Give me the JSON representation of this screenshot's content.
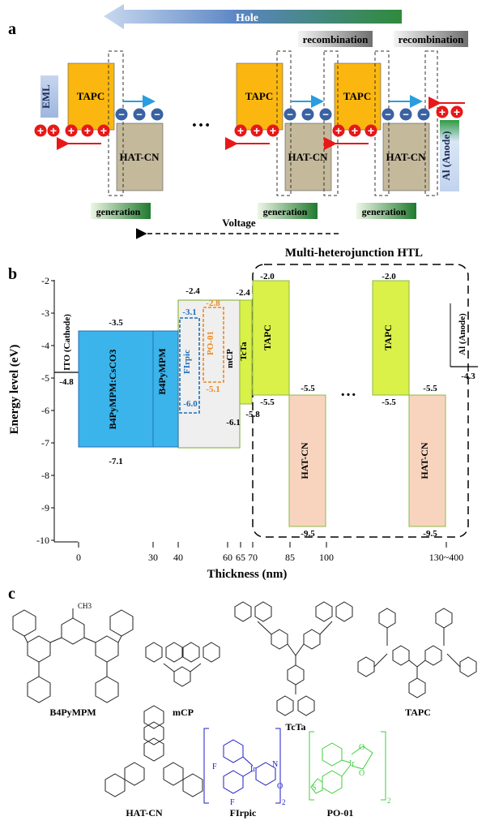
{
  "panel_a": {
    "label": "a",
    "hole_arrow": "Hole",
    "recombination": [
      "recombination",
      "recombination"
    ],
    "eml": "EML",
    "tapc": "TAPC",
    "hatcn": "HAT-CN",
    "anode": "Al (Anode)",
    "ellipsis": "…",
    "generation": [
      "generation",
      "generation",
      "generation"
    ],
    "voltage": "Voltage",
    "plus": "+",
    "minus": "−",
    "colors": {
      "tapc": "#fbb70f",
      "hatcn": "#c4b99b",
      "hole_red": "#e81818",
      "electron_blue": "#3a62a3",
      "arrow_blue": "#2a9de0",
      "gen_green": "#2f8a3b"
    }
  },
  "panel_b": {
    "label": "b",
    "title": "Multi-heterojunction HTL",
    "ylabel": "Energy level (eV)",
    "xlabel": "Thickness (nm)",
    "y_ticks": [
      "-2",
      "-3",
      "-4",
      "-5",
      "-6",
      "-7",
      "-8",
      "-9",
      "-10"
    ],
    "x_ticks": [
      "0",
      "30",
      "40",
      "60",
      "65",
      "70",
      "85",
      "100",
      "130~400"
    ],
    "ellipsis": "…",
    "materials": {
      "ito": "ITO (Cathode)",
      "b4pympm_cs": "B4PyMPM:CsCO3",
      "b4pympm": "B4PyMPM",
      "firpic": "FIrpic",
      "po01": "PO-01",
      "mcp": "mCP",
      "tcta": "TcTa",
      "tapc": "TAPC",
      "hatcn": "HAT-CN",
      "al": "Al (Anode)"
    },
    "level_labels": {
      "ito": "-4.8",
      "b4_lumo": "-3.5",
      "b4_homo": "-7.1",
      "mcp_lumo": "-2.4",
      "mcp_homo": "-6.1",
      "firpic_lumo": "-3.1",
      "firpic_homo": "-6.0",
      "po_lumo": "-2.8",
      "po_homo": "-5.1",
      "tcta_lumo": "-2.4",
      "tcta_homo": "-5.8",
      "tapc_lumo": "-2.0",
      "tapc_homo": "-5.5",
      "hat_lumo": "-5.5",
      "hat_homo": "-9.5",
      "al": "-4.3"
    },
    "chart_data": {
      "type": "energy-level diagram",
      "title": "Multi-heterojunction HTL",
      "xlabel": "Thickness (nm)",
      "ylabel": "Energy level (eV)",
      "ylim": [
        -10,
        -2
      ],
      "layers": [
        {
          "name": "ITO (Cathode)",
          "workfunction": -4.8
        },
        {
          "name": "B4PyMPM:CsCO3",
          "x": [
            0,
            30
          ],
          "lumo": -3.5,
          "homo": -7.1
        },
        {
          "name": "B4PyMPM",
          "x": [
            30,
            40
          ],
          "lumo": -3.5,
          "homo": -7.1
        },
        {
          "name": "mCP",
          "x": [
            40,
            60
          ],
          "lumo": -2.4,
          "homo": -6.1
        },
        {
          "name": "FIrpic",
          "lumo": -3.1,
          "homo": -6.0
        },
        {
          "name": "PO-01",
          "lumo": -2.8,
          "homo": -5.1
        },
        {
          "name": "TcTa",
          "x": [
            60,
            65
          ],
          "lumo": -2.4,
          "homo": -5.8
        },
        {
          "name": "TAPC",
          "x": [
            65,
            85
          ],
          "lumo": -2.0,
          "homo": -5.5
        },
        {
          "name": "HAT-CN",
          "x": [
            85,
            100
          ],
          "lumo": -5.5,
          "homo": -9.5
        },
        {
          "name": "Al (Anode)",
          "workfunction": -4.3
        }
      ]
    }
  },
  "panel_c": {
    "label": "c",
    "molecules": [
      "B4PyMPM",
      "mCP",
      "TcTa",
      "TAPC",
      "HAT-CN",
      "FIrpic",
      "PO-01"
    ],
    "atoms": {
      "ch3": "CH3",
      "ir": "Ir",
      "f": "F",
      "n": "N",
      "o": "O",
      "s": "S",
      "sub2": "2"
    }
  }
}
